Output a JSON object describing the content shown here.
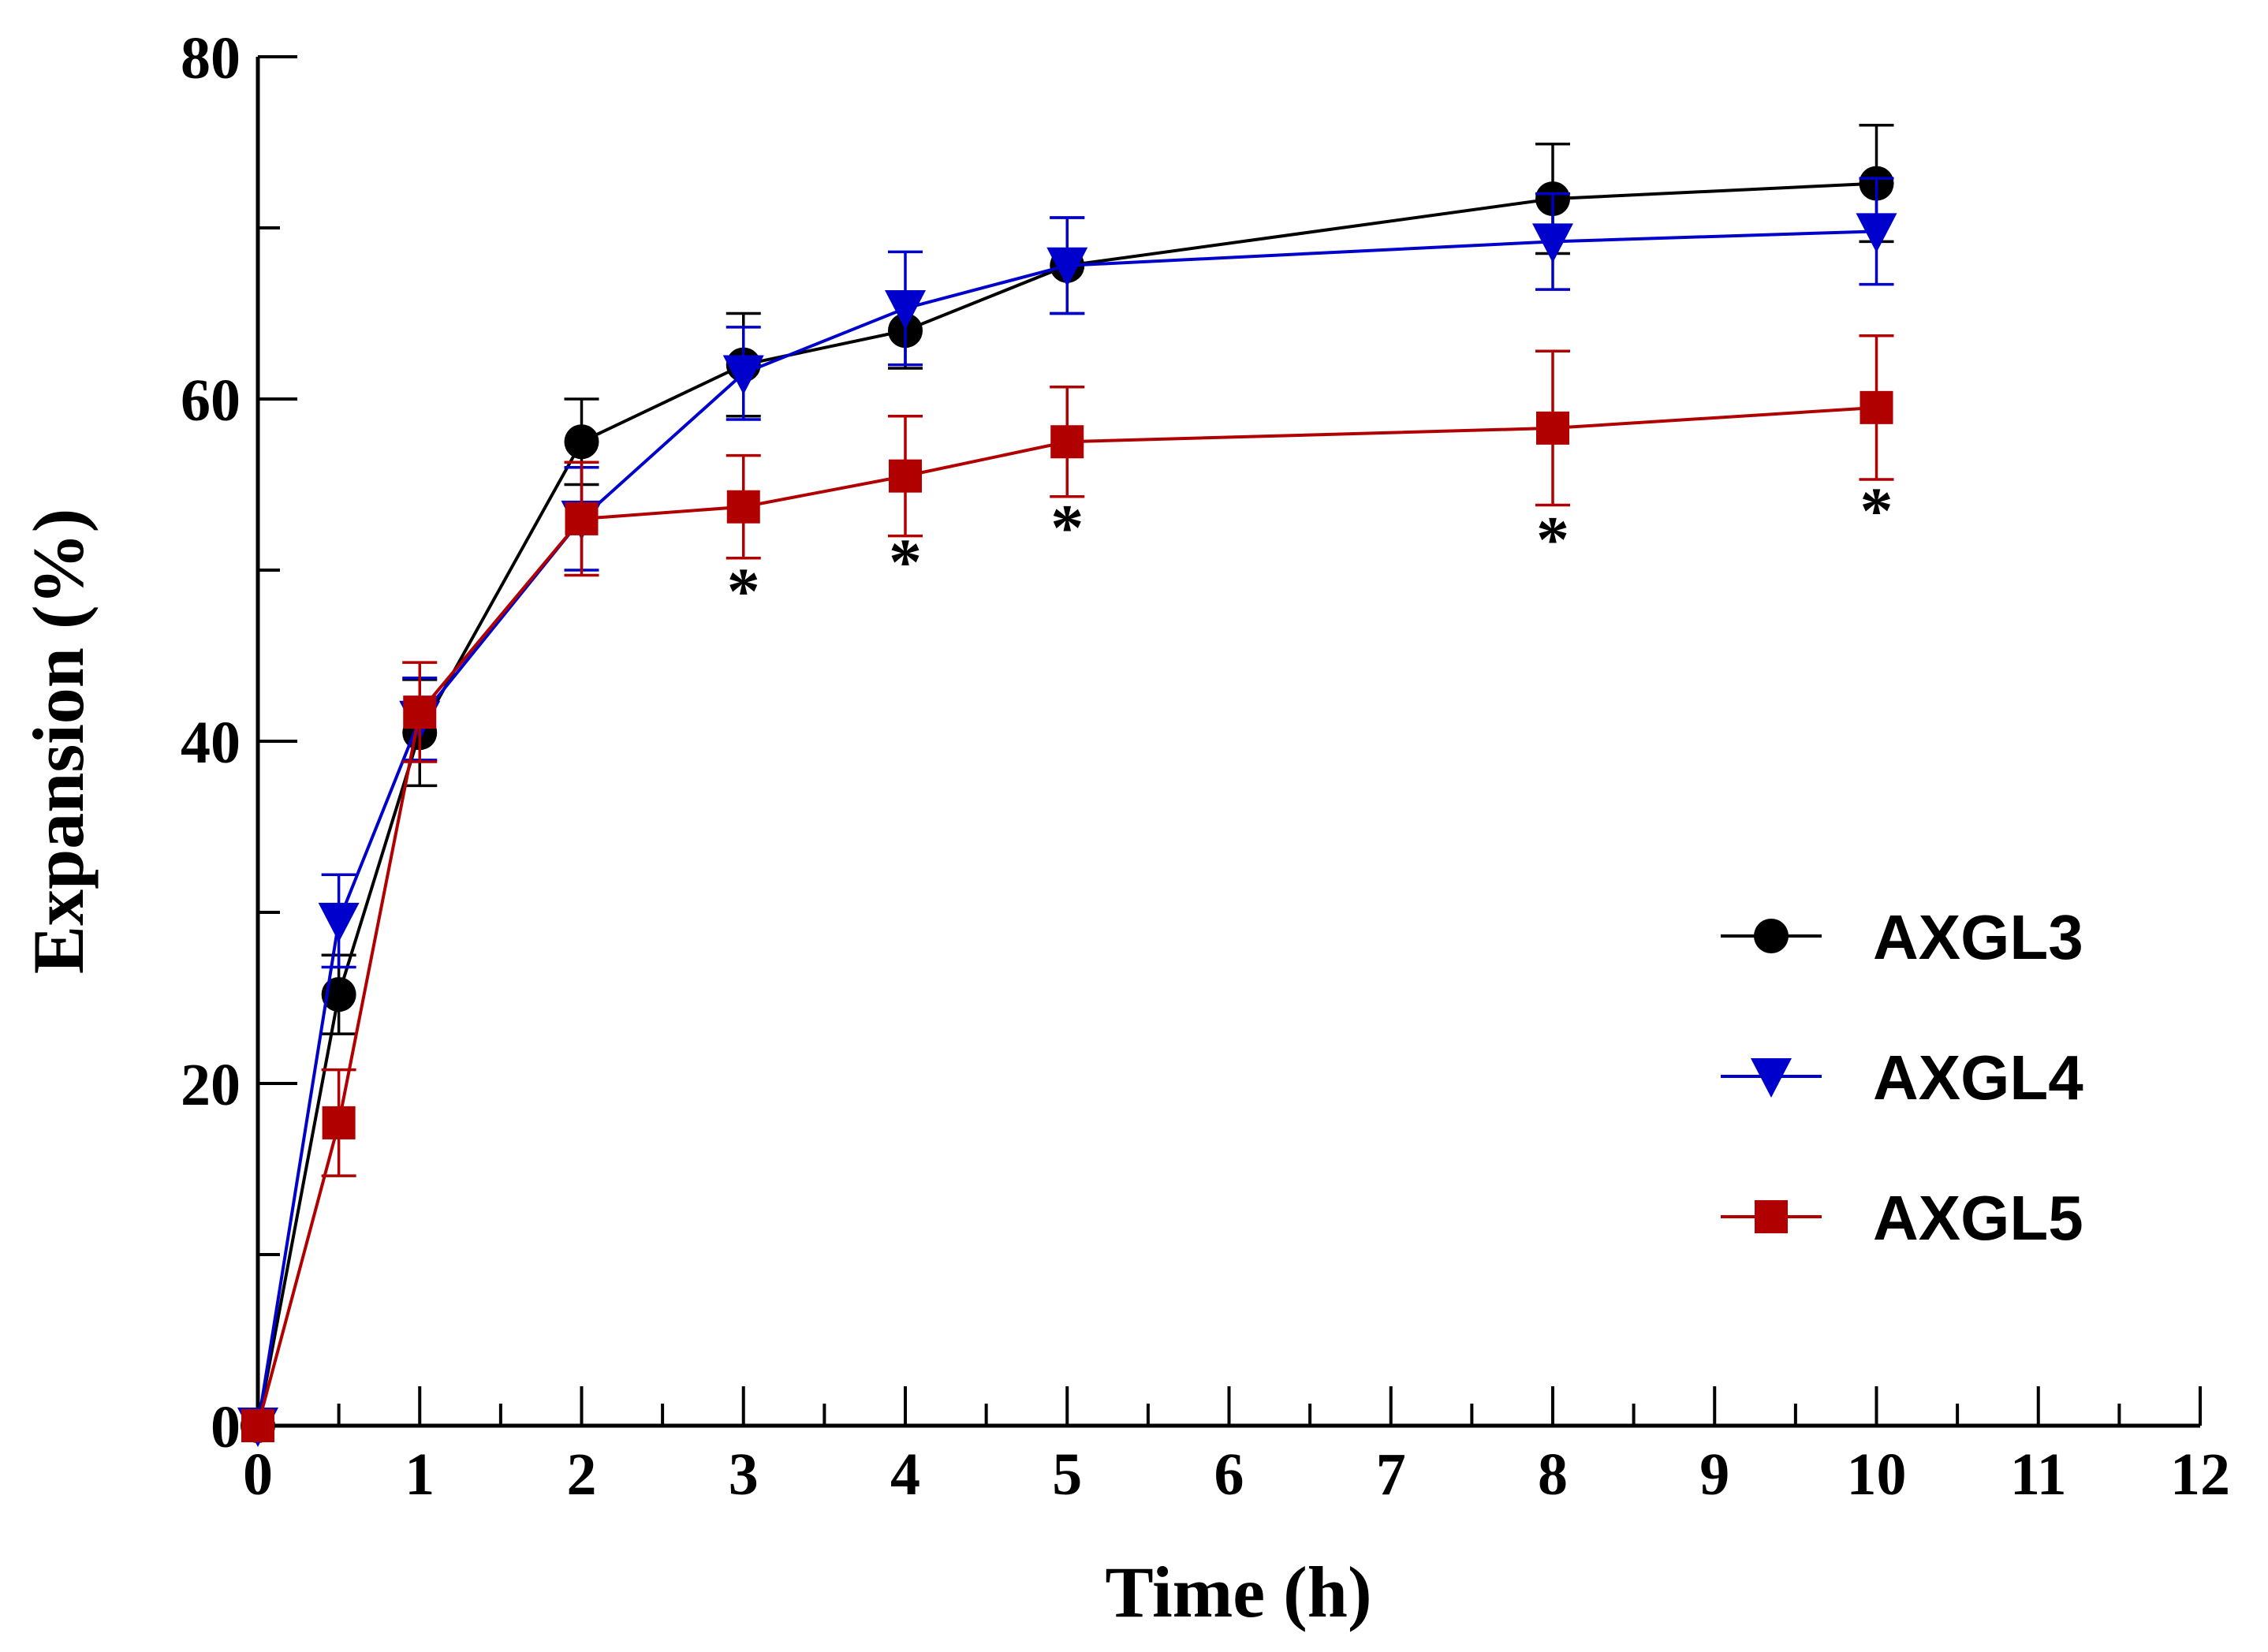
{
  "chart_data": {
    "type": "line",
    "title": "",
    "xlabel": "Time (h)",
    "ylabel": "Expansion (%)",
    "xlim": [
      0,
      12
    ],
    "ylim": [
      0,
      80
    ],
    "xticks": [
      0,
      1,
      2,
      3,
      4,
      5,
      6,
      7,
      8,
      9,
      10,
      11,
      12
    ],
    "xtick_labels": [
      "0",
      "1",
      "2",
      "3",
      "4",
      "5",
      "6",
      "7",
      "8",
      "9",
      "10",
      "11",
      "12"
    ],
    "yticks": [
      0,
      20,
      40,
      60,
      80
    ],
    "ytick_labels": [
      "0",
      "20",
      "40",
      "60",
      "80"
    ],
    "grid": false,
    "legend_position": "right-middle",
    "series": [
      {
        "name": "AXGL3",
        "color": "#000000",
        "marker": "circle",
        "x": [
          0,
          0.5,
          1,
          2,
          3,
          4,
          5,
          8,
          10
        ],
        "y": [
          0,
          25.2,
          40.5,
          57.5,
          62,
          64,
          67.8,
          71.7,
          72.6
        ],
        "err": [
          0,
          2.3,
          3.1,
          2.5,
          3,
          2.2,
          2.8,
          3.2,
          3.4
        ]
      },
      {
        "name": "AXGL4",
        "color": "#0000cc",
        "marker": "triangle-down",
        "x": [
          0,
          0.5,
          1,
          2,
          3,
          4,
          5,
          8,
          10
        ],
        "y": [
          0,
          29.5,
          41.3,
          53,
          61.5,
          65.3,
          67.8,
          69.2,
          69.8
        ],
        "err": [
          0,
          2.7,
          2.4,
          3,
          2.7,
          3.3,
          2.8,
          2.8,
          3.1
        ]
      },
      {
        "name": "AXGL5",
        "color": "#b00000",
        "marker": "square",
        "x": [
          0,
          0.5,
          1,
          2,
          3,
          4,
          5,
          8,
          10
        ],
        "y": [
          0,
          17.7,
          41.7,
          53,
          53.7,
          55.5,
          57.5,
          58.3,
          59.5
        ],
        "err": [
          0,
          3.1,
          2.9,
          3.3,
          3,
          3.5,
          3.2,
          4.5,
          4.2
        ]
      }
    ],
    "annotations": [
      {
        "text": "*",
        "x": 3,
        "y": 47.5
      },
      {
        "text": "*",
        "x": 4,
        "y": 49.2
      },
      {
        "text": "*",
        "x": 5,
        "y": 51.2
      },
      {
        "text": "*",
        "x": 8,
        "y": 50.5
      },
      {
        "text": "*",
        "x": 10,
        "y": 52.2
      }
    ]
  }
}
